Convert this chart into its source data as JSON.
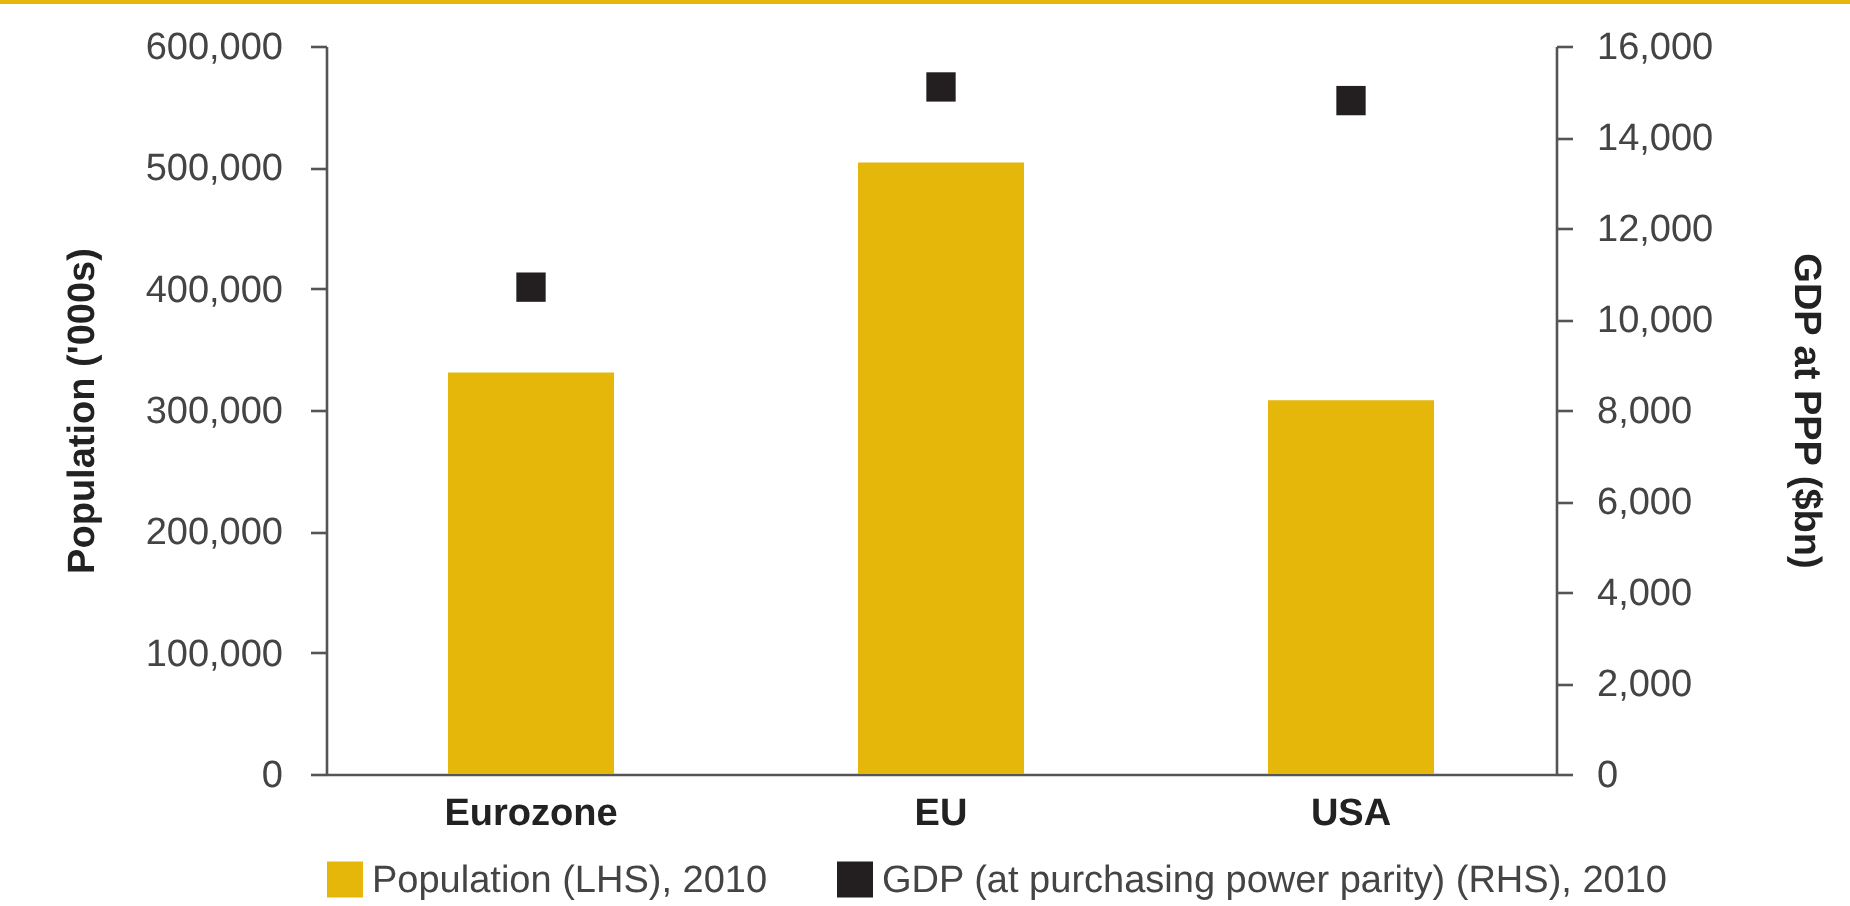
{
  "chart_data": {
    "type": "bar",
    "categories": [
      "Eurozone",
      "EU",
      "USA"
    ],
    "series": [
      {
        "name": "Population (LHS), 2010",
        "color": "#e5b70a",
        "values": [
          331000,
          504000,
          308000
        ]
      },
      {
        "name": "GDP (at purchasing power parity) (RHS), 2010",
        "type": "scatter",
        "axis": "y2",
        "color": "#231f20",
        "values": [
          10700,
          15100,
          14800
        ]
      }
    ],
    "ylabel": "Population ('000s)",
    "y2label": "GDP at PPP ($bn)",
    "ylim": [
      0,
      600000
    ],
    "yticks": [
      0,
      {
        "value": 100000,
        "label": "100,000"
      },
      {
        "value": 200000,
        "label": "200,000"
      },
      {
        "value": 300000,
        "label": "300,000"
      },
      {
        "value": 400000,
        "label": "400,000"
      },
      {
        "value": 500000,
        "label": "500,000"
      },
      {
        "value": 600000,
        "label": "600,000"
      }
    ],
    "y2lim": [
      0,
      16000
    ],
    "y2ticks": [
      0,
      {
        "value": 2000,
        "label": "2,000"
      },
      {
        "value": 4000,
        "label": "4,000"
      },
      {
        "value": 6000,
        "label": "6,000"
      },
      {
        "value": 8000,
        "label": "8,000"
      },
      {
        "value": 10000,
        "label": "10,000"
      },
      {
        "value": 12000,
        "label": "12,000"
      },
      {
        "value": 14000,
        "label": "14,000"
      },
      {
        "value": 16000,
        "label": "16,000"
      }
    ],
    "legend": "bottom",
    "grid": false,
    "marker": "square"
  }
}
